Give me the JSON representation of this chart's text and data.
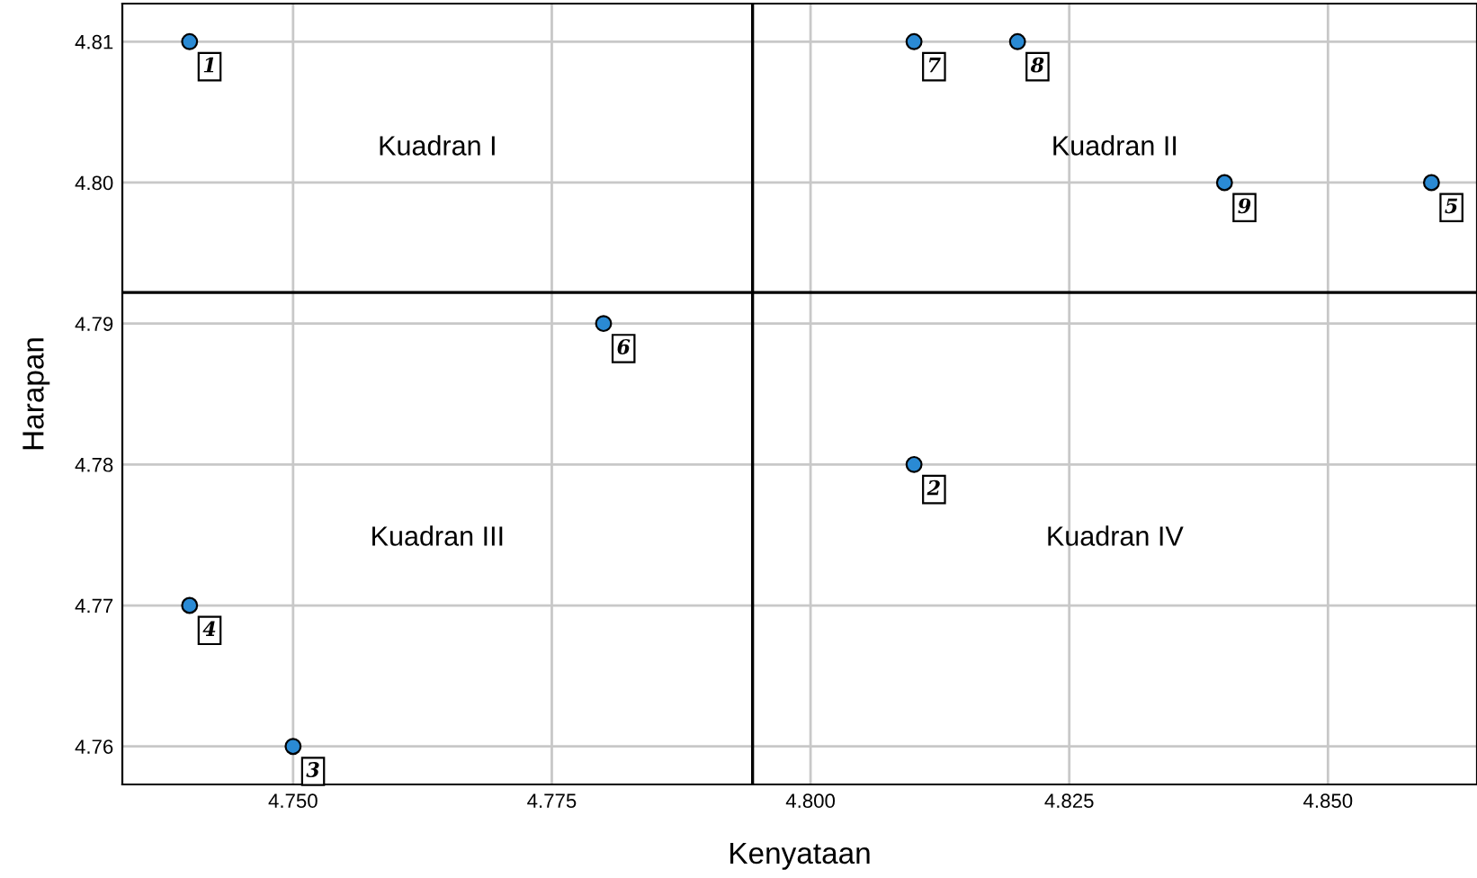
{
  "chart_data": {
    "type": "scatter",
    "xlabel": "Kenyataan",
    "ylabel": "Harapan",
    "x": [
      4.74,
      4.81,
      4.75,
      4.74,
      4.86,
      4.78,
      4.81,
      4.82,
      4.84
    ],
    "series": [
      {
        "color": "#2a8ad4",
        "values": [
          4.81,
          4.78,
          4.76,
          4.77,
          4.8,
          4.79,
          4.81,
          4.81,
          4.8
        ]
      }
    ],
    "marker": "circle",
    "xlim": [
      4.7335,
      4.8644
    ],
    "ylim": [
      4.7573,
      4.8127
    ],
    "xticks": [
      {
        "value": 4.75,
        "label": "4.750"
      },
      {
        "value": 4.775,
        "label": "4.775"
      },
      {
        "value": 4.8,
        "label": "4.800"
      },
      {
        "value": 4.825,
        "label": "4.825"
      },
      {
        "value": 4.85,
        "label": "4.850"
      }
    ],
    "yticks": [
      4.76,
      4.77,
      4.78,
      4.79,
      {
        "value": 4.8,
        "label": "4.80"
      },
      4.81
    ],
    "grid": true,
    "ref_lines": [
      {
        "axis": "x",
        "value": 4.7944,
        "color": "#000000"
      },
      {
        "axis": "y",
        "value": 4.7922,
        "color": "#000000"
      }
    ],
    "annotations": [
      {
        "text": "1",
        "x": 4.74,
        "y": 4.81
      },
      {
        "text": "2",
        "x": 4.81,
        "y": 4.78
      },
      {
        "text": "3",
        "x": 4.75,
        "y": 4.76
      },
      {
        "text": "4",
        "x": 4.74,
        "y": 4.77
      },
      {
        "text": "5",
        "x": 4.86,
        "y": 4.8
      },
      {
        "text": "6",
        "x": 4.78,
        "y": 4.79
      },
      {
        "text": "7",
        "x": 4.81,
        "y": 4.81
      },
      {
        "text": "8",
        "x": 4.82,
        "y": 4.81
      },
      {
        "text": "9",
        "x": 4.84,
        "y": 4.8
      },
      "Kuadran I",
      "Kuadran II",
      "Kuadran III",
      "Kuadran IV"
    ]
  }
}
